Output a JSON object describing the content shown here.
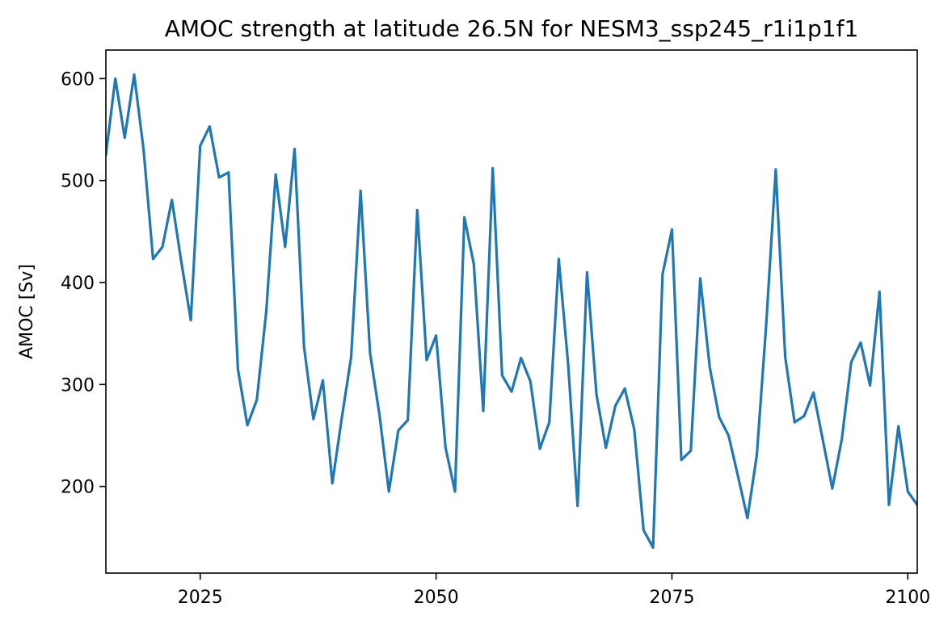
{
  "chart_data": {
    "type": "line",
    "title": "AMOC strength at latitude 26.5N for NESM3_ssp245_r1i1p1f1",
    "xlabel": "",
    "ylabel": "AMOC [Sv]",
    "xlim": [
      2015,
      2101
    ],
    "ylim": [
      115,
      628
    ],
    "x_ticks": [
      2025,
      2050,
      2075,
      2100
    ],
    "y_ticks": [
      200,
      300,
      400,
      500,
      600
    ],
    "grid": false,
    "color": "#1f77b4",
    "series": [
      {
        "x": [
          2015,
          2016,
          2017,
          2018,
          2019,
          2020,
          2021,
          2022,
          2023,
          2024,
          2025,
          2026,
          2027,
          2028,
          2029,
          2030,
          2031,
          2032,
          2033,
          2034,
          2035,
          2036,
          2037,
          2038,
          2039,
          2040,
          2041,
          2042,
          2043,
          2044,
          2045,
          2046,
          2047,
          2048,
          2049,
          2050,
          2051,
          2052,
          2053,
          2054,
          2055,
          2056,
          2057,
          2058,
          2059,
          2060,
          2061,
          2062,
          2063,
          2064,
          2065,
          2066,
          2067,
          2068,
          2069,
          2070,
          2071,
          2072,
          2073,
          2074,
          2075,
          2076,
          2077,
          2078,
          2079,
          2080,
          2081,
          2082,
          2083,
          2084,
          2085,
          2086,
          2087,
          2088,
          2089,
          2090,
          2091,
          2092,
          2093,
          2094,
          2095,
          2096,
          2097,
          2098,
          2099,
          2100,
          2101
        ],
        "values": [
          525,
          600,
          542,
          604,
          530,
          423,
          435,
          481,
          420,
          363,
          534,
          553,
          503,
          508,
          315,
          260,
          285,
          372,
          506,
          435,
          531,
          337,
          266,
          304,
          203,
          267,
          327,
          490,
          331,
          270,
          195,
          255,
          265,
          471,
          324,
          348,
          238,
          195,
          464,
          418,
          274,
          512,
          309,
          293,
          326,
          303,
          237,
          263,
          423,
          320,
          181,
          410,
          290,
          238,
          279,
          296,
          256,
          157,
          140,
          408,
          452,
          226,
          235,
          404,
          317,
          268,
          250,
          210,
          169,
          231,
          360,
          511,
          327,
          263,
          269,
          292,
          245,
          198,
          246,
          322,
          341,
          299,
          391,
          182,
          259,
          195,
          182
        ]
      }
    ]
  }
}
